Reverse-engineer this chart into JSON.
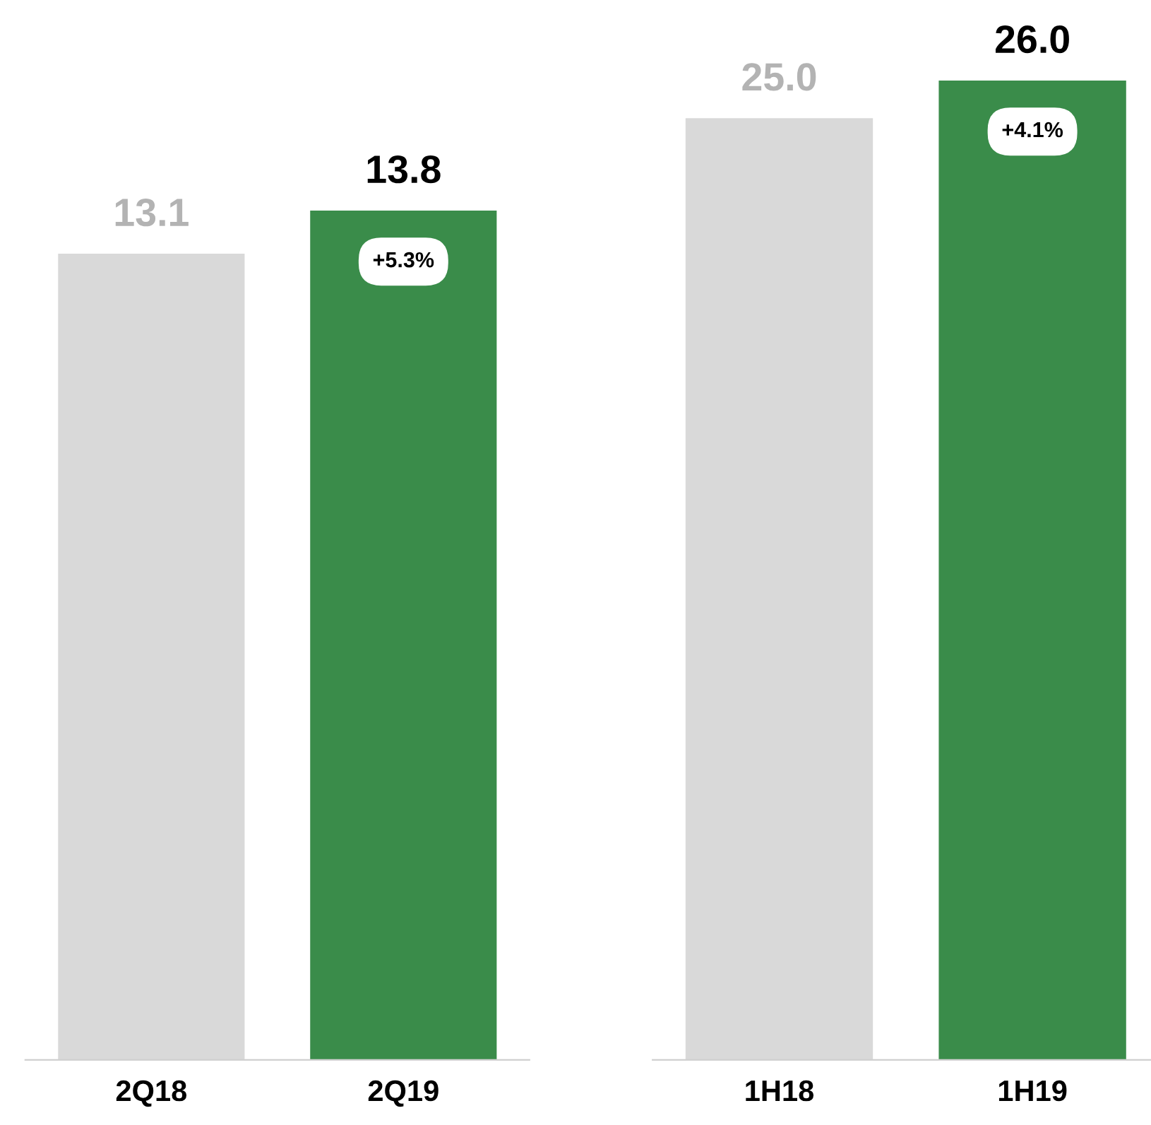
{
  "chart_data": [
    {
      "type": "bar",
      "categories": [
        "2Q18",
        "2Q19"
      ],
      "values": [
        13.1,
        13.8
      ],
      "colors": [
        "#d9d9d9",
        "#3a8c4a"
      ],
      "data_labels": true,
      "grid": false,
      "legend": false,
      "tick_labels": "x",
      "annotations": [
        {
          "text": "+5.3%",
          "x": "2Q19",
          "y": 13.8
        }
      ]
    },
    {
      "type": "bar",
      "categories": [
        "1H18",
        "1H19"
      ],
      "values": [
        25.0,
        26.0
      ],
      "value_labels": [
        "25.0",
        "26.0"
      ],
      "colors": [
        "#d9d9d9",
        "#3a8c4a"
      ],
      "grid": false,
      "legend": false,
      "tick_labels": "x",
      "annotations": [
        {
          "text": "+4.1%",
          "x": "1H19",
          "y": 26.0
        }
      ]
    }
  ]
}
